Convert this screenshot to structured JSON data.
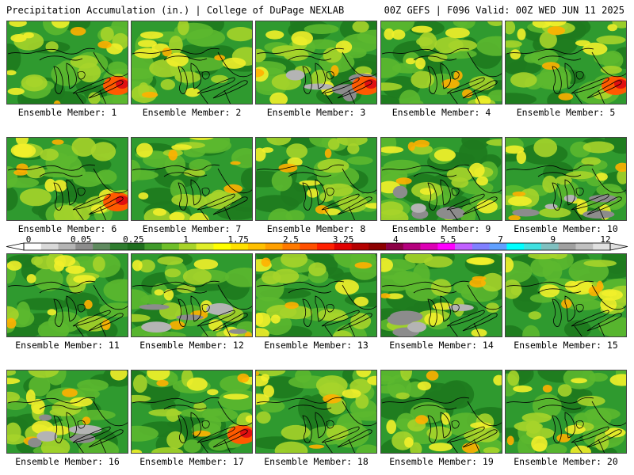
{
  "header": {
    "left": "Precipitation Accumulation (in.) | College of DuPage NEXLAB",
    "right": "00Z GEFS | F096 Valid: 00Z WED JUN 11 2025"
  },
  "panels": [
    {
      "label": "Ensemble Member: 1"
    },
    {
      "label": "Ensemble Member: 2"
    },
    {
      "label": "Ensemble Member: 3"
    },
    {
      "label": "Ensemble Member: 4"
    },
    {
      "label": "Ensemble Member: 5"
    },
    {
      "label": "Ensemble Member: 6"
    },
    {
      "label": "Ensemble Member: 7"
    },
    {
      "label": "Ensemble Member: 8"
    },
    {
      "label": "Ensemble Member: 9"
    },
    {
      "label": "Ensemble Member: 10"
    },
    {
      "label": "Ensemble Member: 11"
    },
    {
      "label": "Ensemble Member: 12"
    },
    {
      "label": "Ensemble Member: 13"
    },
    {
      "label": "Ensemble Member: 14"
    },
    {
      "label": "Ensemble Member: 15"
    },
    {
      "label": "Ensemble Member: 16"
    },
    {
      "label": "Ensemble Member: 17"
    },
    {
      "label": "Ensemble Member: 18"
    },
    {
      "label": "Ensemble Member: 19"
    },
    {
      "label": "Ensemble Member: 20"
    }
  ],
  "colorbar": {
    "tick_labels": [
      "0",
      "0.05",
      "0.25",
      "1",
      "1.75",
      "2.5",
      "3.25",
      "4",
      "5.5",
      "7",
      "9",
      "12"
    ],
    "colors": [
      "#ffffff",
      "#d9d9d9",
      "#b4b4b4",
      "#8c8c8c",
      "#5f8a5f",
      "#2f7d2f",
      "#1e6e1e",
      "#3f9a2a",
      "#6fbf2a",
      "#a8d42a",
      "#e0ee2a",
      "#ffff00",
      "#ffe000",
      "#ffc000",
      "#ffa000",
      "#ff7a00",
      "#ff5000",
      "#ff2000",
      "#e00000",
      "#b40000",
      "#8c0000",
      "#8c0046",
      "#b4007d",
      "#dc00b4",
      "#ff00ff",
      "#c060ff",
      "#8080ff",
      "#60a0ff",
      "#00ffff",
      "#40e0e0",
      "#80c0c0",
      "#a0a0a0",
      "#c0c0c0",
      "#e0e0e0"
    ]
  }
}
